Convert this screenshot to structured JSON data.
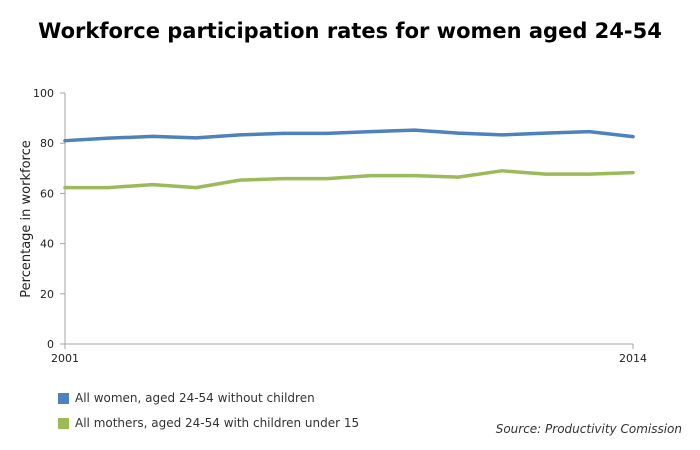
{
  "chart_data": {
    "type": "line",
    "title": "Workforce participation rates for women aged 24-54",
    "ylabel": "Percentage in workforce",
    "xlabel": "",
    "ylim": [
      0,
      100
    ],
    "yticks": [
      0,
      20,
      40,
      60,
      80,
      100
    ],
    "xlim": [
      2001,
      2014
    ],
    "xtick_labels": [
      "2001",
      "2014"
    ],
    "grid": false,
    "legend_position": "bottom-left",
    "source": "Source: Productivity Comission",
    "x": [
      2001,
      2002,
      2003,
      2004,
      2005,
      2006,
      2007,
      2008,
      2009,
      2010,
      2011,
      2012,
      2013,
      2014
    ],
    "series": [
      {
        "name": "All women, aged 24-54 without children",
        "color": "#4f81bd",
        "values": [
          81,
          82,
          82.7,
          82.1,
          83.3,
          83.9,
          83.9,
          84.6,
          85.2,
          84,
          83.3,
          84,
          84.6,
          82.6
        ]
      },
      {
        "name": "All mothers, aged 24-54 with children under 15",
        "color": "#9bbb59",
        "values": [
          62.3,
          62.3,
          63.5,
          62.3,
          65.3,
          65.9,
          65.9,
          67.1,
          67.1,
          66.5,
          69,
          67.7,
          67.7,
          68.3
        ]
      }
    ]
  }
}
